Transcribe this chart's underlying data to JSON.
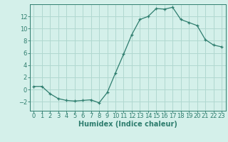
{
  "x": [
    0,
    1,
    2,
    3,
    4,
    5,
    6,
    7,
    8,
    9,
    10,
    11,
    12,
    13,
    14,
    15,
    16,
    17,
    18,
    19,
    20,
    21,
    22,
    23
  ],
  "y": [
    0.5,
    0.5,
    -0.7,
    -1.5,
    -1.8,
    -1.9,
    -1.8,
    -1.7,
    -2.2,
    -0.5,
    2.7,
    5.8,
    9.0,
    11.5,
    12.0,
    13.3,
    13.2,
    13.5,
    11.5,
    11.0,
    10.5,
    8.2,
    7.3,
    7.0
  ],
  "line_color": "#2e7d6e",
  "marker": "+",
  "bg_color": "#d4f0ea",
  "grid_color": "#b0d8d0",
  "xlabel": "Humidex (Indice chaleur)",
  "xlim": [
    -0.5,
    23.5
  ],
  "ylim": [
    -3.5,
    14.0
  ],
  "yticks": [
    -2,
    0,
    2,
    4,
    6,
    8,
    10,
    12
  ],
  "xticks": [
    0,
    1,
    2,
    3,
    4,
    5,
    6,
    7,
    8,
    9,
    10,
    11,
    12,
    13,
    14,
    15,
    16,
    17,
    18,
    19,
    20,
    21,
    22,
    23
  ],
  "tick_color": "#2e7d6e",
  "label_color": "#2e7d6e",
  "font_size": 6,
  "xlabel_fontsize": 7
}
